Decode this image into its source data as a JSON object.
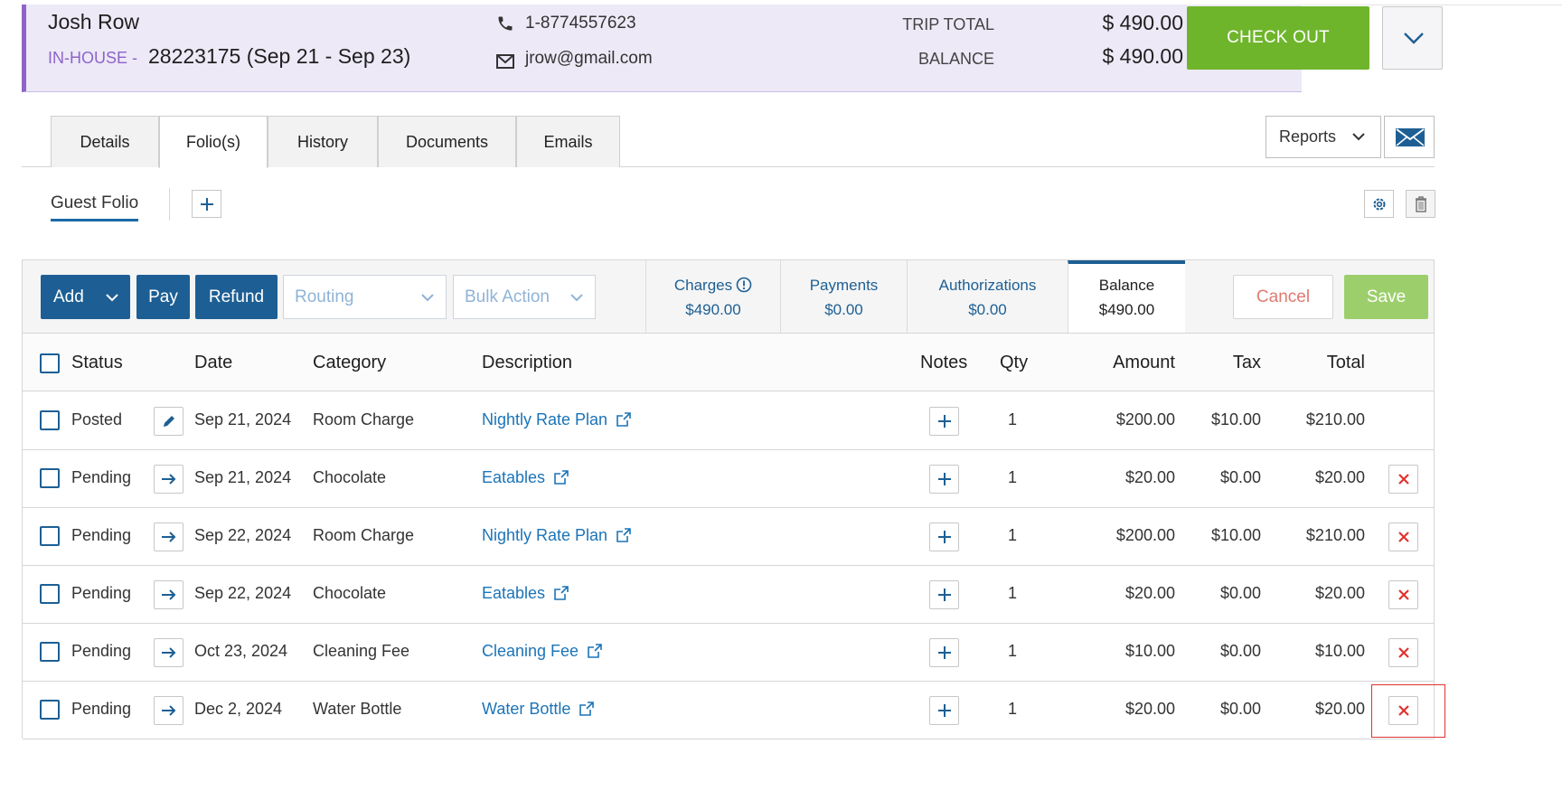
{
  "guest": {
    "name": "Josh Row",
    "status": "IN-HOUSE -",
    "reservation": "28223175 (Sep 21 - Sep 23)",
    "phone": "1-8774557623",
    "email": "jrow@gmail.com"
  },
  "totals": {
    "trip_total_label": "TRIP TOTAL",
    "trip_total_value": "$ 490.00",
    "balance_label": "BALANCE",
    "balance_value": "$ 490.00"
  },
  "header_actions": {
    "checkout_label": "CHECK OUT"
  },
  "tabs": [
    {
      "label": "Details"
    },
    {
      "label": "Folio(s)"
    },
    {
      "label": "History"
    },
    {
      "label": "Documents"
    },
    {
      "label": "Emails"
    }
  ],
  "reports": {
    "label": "Reports"
  },
  "folio": {
    "tab_label": "Guest Folio"
  },
  "toolbar": {
    "add_label": "Add",
    "pay_label": "Pay",
    "refund_label": "Refund",
    "routing_label": "Routing",
    "bulk_label": "Bulk Action",
    "cancel_label": "Cancel",
    "save_label": "Save"
  },
  "summary": [
    {
      "label": "Charges",
      "value": "$490.00"
    },
    {
      "label": "Payments",
      "value": "$0.00"
    },
    {
      "label": "Authorizations",
      "value": "$0.00"
    },
    {
      "label": "Balance",
      "value": "$490.00"
    }
  ],
  "columns": {
    "status": "Status",
    "date": "Date",
    "category": "Category",
    "description": "Description",
    "notes": "Notes",
    "qty": "Qty",
    "amount": "Amount",
    "tax": "Tax",
    "total": "Total"
  },
  "rows": [
    {
      "status": "Posted",
      "date": "Sep 21, 2024",
      "category": "Room Charge",
      "description": "Nightly Rate Plan",
      "qty": "1",
      "amount": "$200.00",
      "tax": "$10.00",
      "total": "$210.00"
    },
    {
      "status": "Pending",
      "date": "Sep 21, 2024",
      "category": "Chocolate",
      "description": "Eatables",
      "qty": "1",
      "amount": "$20.00",
      "tax": "$0.00",
      "total": "$20.00"
    },
    {
      "status": "Pending",
      "date": "Sep 22, 2024",
      "category": "Room Charge",
      "description": "Nightly Rate Plan",
      "qty": "1",
      "amount": "$200.00",
      "tax": "$10.00",
      "total": "$210.00"
    },
    {
      "status": "Pending",
      "date": "Sep 22, 2024",
      "category": "Chocolate",
      "description": "Eatables",
      "qty": "1",
      "amount": "$20.00",
      "tax": "$0.00",
      "total": "$20.00"
    },
    {
      "status": "Pending",
      "date": "Oct 23, 2024",
      "category": "Cleaning Fee",
      "description": "Cleaning Fee",
      "qty": "1",
      "amount": "$10.00",
      "tax": "$0.00",
      "total": "$10.00"
    },
    {
      "status": "Pending",
      "date": "Dec 2, 2024",
      "category": "Water Bottle",
      "description": "Water Bottle",
      "qty": "1",
      "amount": "$20.00",
      "tax": "$0.00",
      "total": "$20.00"
    }
  ],
  "colors": {
    "primary": "#1d5f94",
    "link": "#1b74b7",
    "checkout": "#6fb52c",
    "save": "#9ccf6c",
    "header_bg": "#ede9f7",
    "status_purple": "#8e64c9",
    "delete_red": "#e0322f"
  }
}
